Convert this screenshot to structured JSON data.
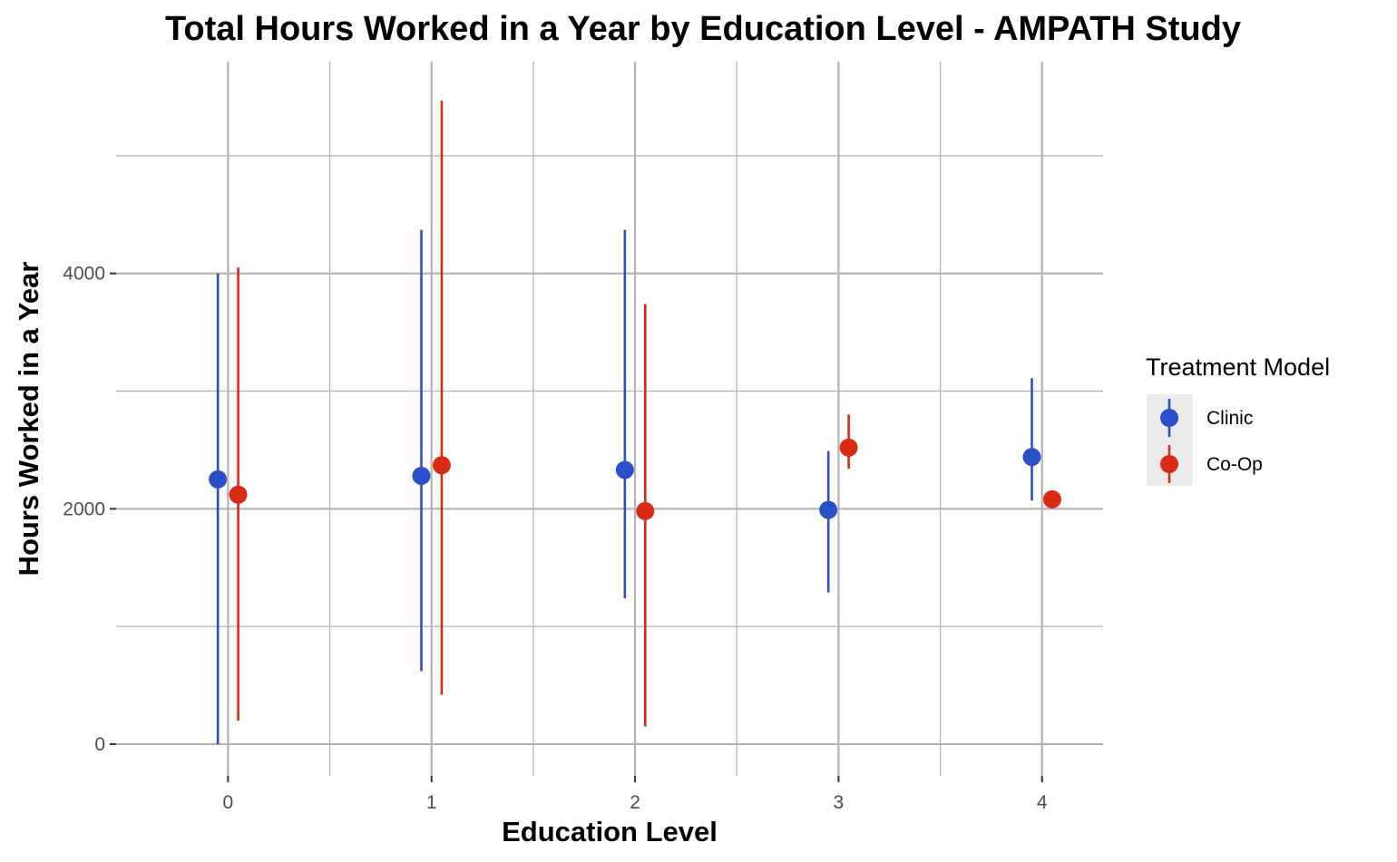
{
  "chart_data": {
    "type": "scatter",
    "title": "Total Hours Worked in a Year by Education Level - AMPATH Study",
    "xlabel": "Education Level",
    "ylabel": "Hours Worked in a Year",
    "categories": [
      "0",
      "1",
      "2",
      "3",
      "4"
    ],
    "xlim": [
      -0.55,
      4.3
    ],
    "ylim": [
      -270,
      5800
    ],
    "y_ticks": [
      0,
      2000,
      4000
    ],
    "grid": true,
    "legend": {
      "title": "Treatment Model",
      "position": "right"
    },
    "series": [
      {
        "name": "Clinic",
        "color": "#2a4fc8",
        "values": [
          2250,
          2280,
          2330,
          1990,
          2440
        ],
        "lower": [
          0,
          620,
          1240,
          1290,
          2070
        ],
        "upper": [
          4000,
          4370,
          4370,
          2490,
          3110
        ]
      },
      {
        "name": "Co-Op",
        "color": "#d92a14",
        "values": [
          2120,
          2370,
          1980,
          2520,
          2080
        ],
        "lower": [
          200,
          420,
          150,
          2340,
          2080
        ],
        "upper": [
          4050,
          5470,
          3740,
          2800,
          2080
        ]
      }
    ]
  }
}
